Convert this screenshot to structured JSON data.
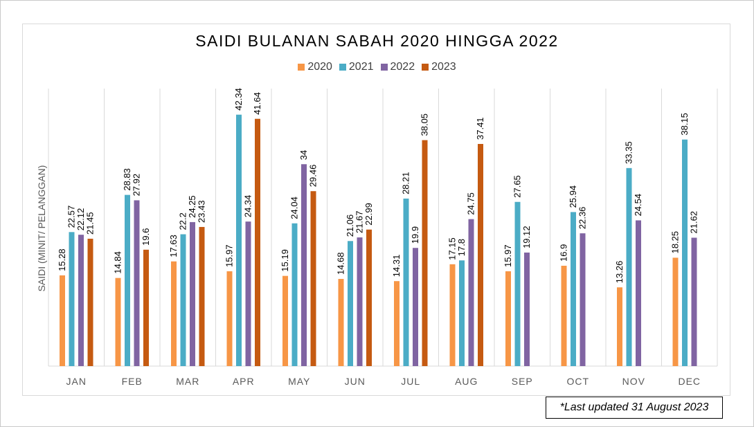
{
  "chart_data": {
    "type": "bar",
    "title": "SAIDI BULANAN SABAH 2020 HINGGA 2022",
    "ylabel": "SAIDI (MINIT/ PELANGGAN)",
    "xlabel": "",
    "ylim": [
      0,
      48
    ],
    "grid": "vertical",
    "legend_position": "top",
    "categories": [
      "JAN",
      "FEB",
      "MAR",
      "APR",
      "MAY",
      "JUN",
      "JUL",
      "AUG",
      "SEP",
      "OCT",
      "NOV",
      "DEC"
    ],
    "series": [
      {
        "name": "2020",
        "color": "#f79646",
        "values": [
          15.28,
          14.84,
          17.63,
          15.97,
          15.19,
          14.68,
          14.31,
          17.15,
          15.97,
          16.9,
          13.26,
          18.25
        ]
      },
      {
        "name": "2021",
        "color": "#4bacc6",
        "values": [
          22.57,
          28.83,
          22.2,
          42.34,
          24.04,
          21.06,
          28.21,
          17.8,
          27.65,
          25.94,
          33.35,
          38.15
        ]
      },
      {
        "name": "2022",
        "color": "#8064a2",
        "values": [
          22.12,
          27.92,
          24.25,
          24.34,
          34,
          21.67,
          19.9,
          24.75,
          19.12,
          22.36,
          24.54,
          21.62
        ]
      },
      {
        "name": "2023",
        "color": "#c55a11",
        "values": [
          21.45,
          19.6,
          23.43,
          41.64,
          29.46,
          22.99,
          38.05,
          37.41,
          null,
          null,
          null,
          null
        ]
      }
    ]
  },
  "note": {
    "text": "*Last updated 31 August 2023"
  }
}
